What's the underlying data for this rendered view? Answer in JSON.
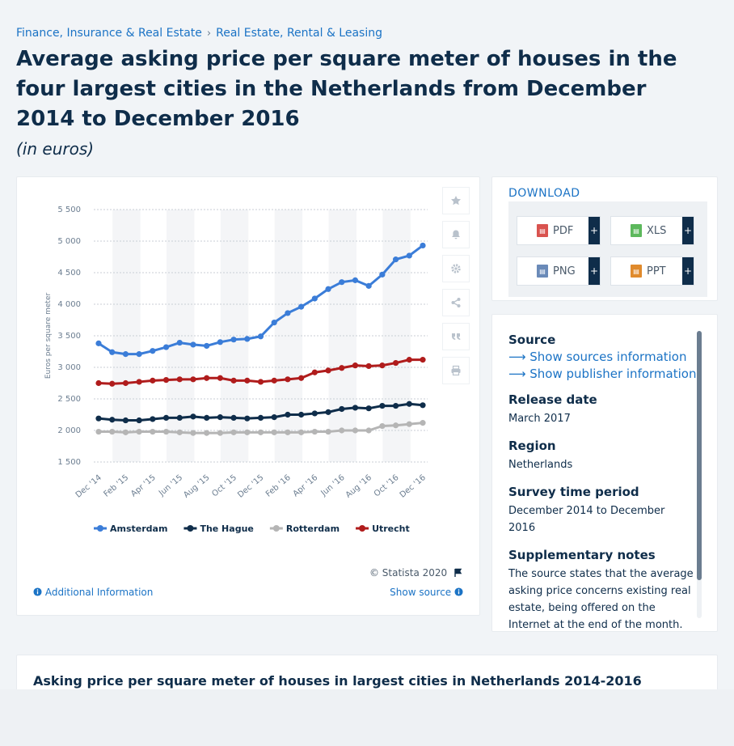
{
  "breadcrumb": {
    "item1": "Finance, Insurance & Real Estate",
    "separator": "›",
    "item2": "Real Estate, Rental & Leasing"
  },
  "title": "Average asking price per square meter of houses in the four largest cities in the Netherlands from December 2014 to December 2016",
  "subtitle": "(in euros)",
  "chart_data": {
    "type": "line",
    "ylabel": "Euros per square meter",
    "ylim": [
      1500,
      5500
    ],
    "yticks": [
      1500,
      2000,
      2500,
      3000,
      3500,
      4000,
      4500,
      5000,
      5500
    ],
    "ytick_labels": [
      "1 500",
      "2 000",
      "2 500",
      "3 000",
      "3 500",
      "4 000",
      "4 500",
      "5 000",
      "5 500"
    ],
    "x": [
      "Dec '14",
      "Jan '15",
      "Feb '15",
      "Mar '15",
      "Apr '15",
      "May '15",
      "Jun '15",
      "Jul '15",
      "Aug '15",
      "Sep '15",
      "Oct '15",
      "Nov '15",
      "Dec '15",
      "Jan '16",
      "Feb '16",
      "Mar '16",
      "Apr '16",
      "May '16",
      "Jun '16",
      "Jul '16",
      "Aug '16",
      "Sep '16",
      "Oct '16",
      "Nov '16",
      "Dec '16"
    ],
    "xtick_labels": [
      "Dec '14",
      "Feb '15",
      "Apr '15",
      "Jun '15",
      "Aug '15",
      "Oct '15",
      "Dec '15",
      "Feb '16",
      "Apr '16",
      "Jun '16",
      "Aug '16",
      "Oct '16",
      "Dec '16"
    ],
    "grid": true,
    "legend": "bottom",
    "series": [
      {
        "name": "Amsterdam",
        "color": "#3b7dd8",
        "values": [
          3380,
          3240,
          3210,
          3210,
          3260,
          3320,
          3390,
          3360,
          3340,
          3400,
          3440,
          3450,
          3490,
          3710,
          3860,
          3960,
          4090,
          4240,
          4350,
          4380,
          4290,
          4470,
          4710,
          4770,
          4930
        ]
      },
      {
        "name": "The Hague",
        "color": "#0f2d4a",
        "values": [
          2190,
          2170,
          2160,
          2160,
          2180,
          2200,
          2200,
          2220,
          2200,
          2210,
          2200,
          2190,
          2200,
          2210,
          2250,
          2250,
          2270,
          2290,
          2340,
          2360,
          2350,
          2390,
          2390,
          2420,
          2400
        ]
      },
      {
        "name": "Rotterdam",
        "color": "#b5b5b5",
        "values": [
          1980,
          1980,
          1970,
          1980,
          1980,
          1980,
          1970,
          1960,
          1960,
          1960,
          1970,
          1970,
          1970,
          1970,
          1970,
          1970,
          1980,
          1980,
          2000,
          2000,
          2000,
          2070,
          2080,
          2100,
          2120
        ]
      },
      {
        "name": "Utrecht",
        "color": "#b01c1c",
        "values": [
          2750,
          2740,
          2750,
          2770,
          2790,
          2800,
          2810,
          2810,
          2830,
          2830,
          2790,
          2790,
          2770,
          2790,
          2810,
          2830,
          2920,
          2950,
          2990,
          3030,
          3020,
          3030,
          3070,
          3120,
          3120
        ]
      }
    ]
  },
  "chart_card": {
    "copyright": "© Statista 2020",
    "additional_info": "Additional Information",
    "show_source": "Show source"
  },
  "download": {
    "heading": "DOWNLOAD",
    "pdf": "PDF",
    "xls": "XLS",
    "png": "PNG",
    "ppt": "PPT",
    "plus": "+",
    "colors": {
      "pdf": "#d9534f",
      "xls": "#5cb85c",
      "png": "#6a8ab8",
      "ppt": "#e08a2c"
    }
  },
  "info": {
    "source_label": "Source",
    "show_sources": "Show sources information",
    "show_publisher": "Show publisher information",
    "release_label": "Release date",
    "release_value": "March 2017",
    "region_label": "Region",
    "region_value": "Netherlands",
    "survey_label": "Survey time period",
    "survey_value": "December 2014 to December 2016",
    "notes_label": "Supplementary notes",
    "notes_value": "The source states that the average asking price concerns existing real estate, being offered on the Internet at the end of the month."
  },
  "bottom": {
    "title": "Asking price per square meter of houses in largest cities in Netherlands 2014-2016"
  }
}
